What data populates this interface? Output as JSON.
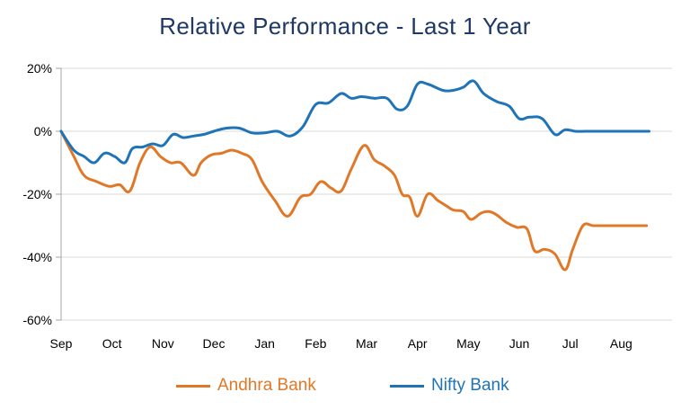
{
  "chart_data": {
    "type": "line",
    "title": "Relative Performance - Last 1 Year",
    "xlabel": "",
    "ylabel": "",
    "x_ticks": [
      "Sep",
      "Oct",
      "Nov",
      "Dec",
      "Jan",
      "Feb",
      "Mar",
      "Apr",
      "May",
      "Jun",
      "Jul",
      "Aug"
    ],
    "y_ticks": [
      "20%",
      "0%",
      "-20%",
      "-40%",
      "-60%"
    ],
    "ylim": [
      -60,
      20
    ],
    "xlim": [
      0,
      12
    ],
    "grid": true,
    "legend_position": "bottom",
    "series": [
      {
        "name": "Andhra Bank",
        "color": "#e07828",
        "x": [
          0,
          0.25,
          0.45,
          0.7,
          0.95,
          1.15,
          1.35,
          1.55,
          1.75,
          1.95,
          2.15,
          2.35,
          2.6,
          2.75,
          2.95,
          3.15,
          3.35,
          3.55,
          3.75,
          3.95,
          4.2,
          4.45,
          4.7,
          4.9,
          5.1,
          5.3,
          5.5,
          5.7,
          5.95,
          6.15,
          6.35,
          6.55,
          6.7,
          6.85,
          7.0,
          7.2,
          7.4,
          7.55,
          7.7,
          7.9,
          8.05,
          8.25,
          8.4,
          8.55,
          8.75,
          8.95,
          9.15,
          9.3,
          9.5,
          9.7,
          9.9,
          10.05,
          10.25,
          10.45,
          10.65,
          10.85,
          11.05,
          11.2,
          11.35,
          11.5
        ],
        "y": [
          0,
          -8,
          -14,
          -16,
          -17.5,
          -17,
          -19,
          -10,
          -5,
          -8,
          -10,
          -10,
          -14,
          -10,
          -7.5,
          -7,
          -6,
          -7,
          -9,
          -16,
          -22,
          -27,
          -21,
          -20,
          -16,
          -18,
          -19,
          -12,
          -4.5,
          -9,
          -11,
          -14,
          -20,
          -21,
          -27,
          -20,
          -22,
          -23.5,
          -25,
          -25.5,
          -28,
          -26,
          -25.5,
          -26.5,
          -29,
          -30.5,
          -31,
          -38,
          -37.5,
          -39,
          -44,
          -37.5,
          -30,
          -30,
          -30,
          -30,
          -30,
          -30,
          -30,
          -30
        ]
      },
      {
        "name": "Nifty Bank",
        "color": "#1f73b7",
        "x": [
          0,
          0.25,
          0.45,
          0.65,
          0.85,
          1.05,
          1.25,
          1.4,
          1.6,
          1.8,
          2.0,
          2.2,
          2.4,
          2.6,
          2.8,
          3.0,
          3.25,
          3.5,
          3.75,
          4.0,
          4.25,
          4.5,
          4.75,
          5.0,
          5.25,
          5.5,
          5.7,
          5.9,
          6.15,
          6.4,
          6.6,
          6.8,
          7.0,
          7.2,
          7.5,
          7.7,
          7.9,
          8.1,
          8.3,
          8.55,
          8.8,
          9.0,
          9.2,
          9.45,
          9.7,
          9.9,
          10.1,
          10.3,
          10.55,
          10.75,
          10.95,
          11.15,
          11.35,
          11.55
        ],
        "y": [
          0,
          -6,
          -8,
          -10,
          -7,
          -8,
          -10,
          -5.5,
          -5,
          -4,
          -4.5,
          -1,
          -2,
          -1.5,
          -1,
          0,
          1,
          1,
          -0.5,
          -0.5,
          0,
          -1.5,
          1.5,
          8.5,
          9,
          12,
          10.5,
          11,
          10.5,
          10.5,
          7,
          8,
          15,
          15,
          13,
          13,
          14,
          16,
          12,
          9.5,
          8,
          4,
          4.5,
          4,
          -1,
          0.5,
          0,
          0,
          0,
          0,
          0,
          0,
          0,
          0
        ]
      }
    ]
  }
}
